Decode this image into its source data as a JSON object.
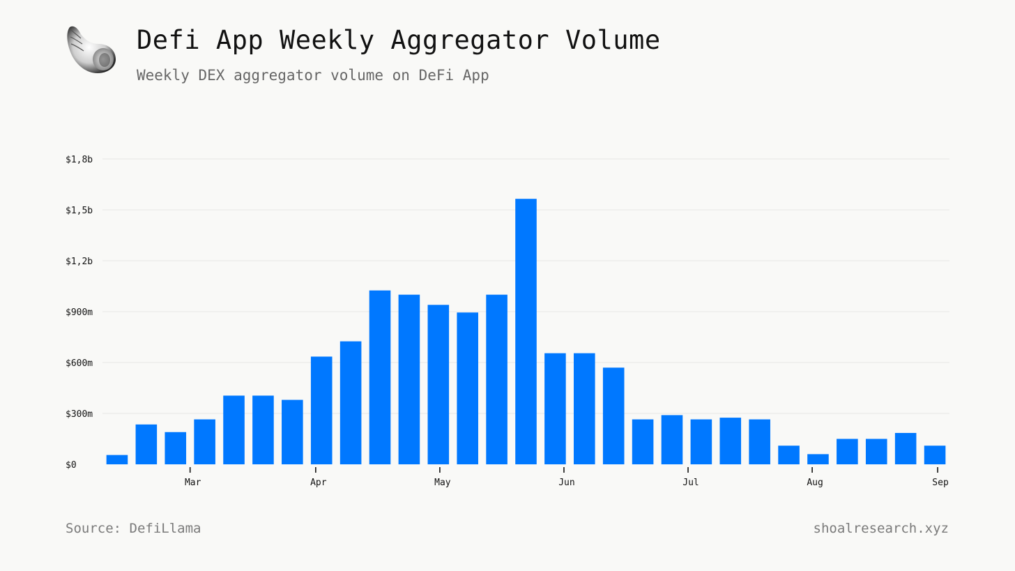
{
  "header": {
    "title": "Defi App Weekly Aggregator Volume",
    "subtitle": "Weekly DEX aggregator volume on DeFi App"
  },
  "footer": {
    "source": "Source: DefiLlama",
    "site": "shoalresearch.xyz"
  },
  "logo": {
    "icon": "seashell-icon"
  },
  "colors": {
    "bar": "#0078ff",
    "grid": "#e6e6e6",
    "text": "#111111",
    "muted": "#7a7a7a",
    "background": "#f9f9f7"
  },
  "chart_data": {
    "type": "bar",
    "title": "Defi App Weekly Aggregator Volume",
    "subtitle": "Weekly DEX aggregator volume on DeFi App",
    "xlabel": "",
    "ylabel": "",
    "unit": "USD",
    "ylim": [
      0,
      1800000000
    ],
    "grid": true,
    "legend": "none",
    "yticks": [
      {
        "value": 0,
        "label": "$0"
      },
      {
        "value": 300000000,
        "label": "$300m"
      },
      {
        "value": 600000000,
        "label": "$600m"
      },
      {
        "value": 900000000,
        "label": "$900m"
      },
      {
        "value": 1200000000,
        "label": "$1,2b"
      },
      {
        "value": 1500000000,
        "label": "$1,5b"
      },
      {
        "value": 1800000000,
        "label": "$1,8b"
      }
    ],
    "xticks": [
      {
        "label": "Mar",
        "at_bar": 3
      },
      {
        "label": "Apr",
        "at_bar": 7.3
      },
      {
        "label": "May",
        "at_bar": 11.55
      },
      {
        "label": "Jun",
        "at_bar": 15.8
      },
      {
        "label": "Jul",
        "at_bar": 20.05
      },
      {
        "label": "Aug",
        "at_bar": 24.3
      },
      {
        "label": "Sep",
        "at_bar": 28.5
      }
    ],
    "values": [
      55000000,
      235000000,
      190000000,
      265000000,
      405000000,
      405000000,
      380000000,
      635000000,
      725000000,
      1025000000,
      1000000000,
      940000000,
      895000000,
      1000000000,
      1565000000,
      655000000,
      655000000,
      570000000,
      265000000,
      290000000,
      265000000,
      275000000,
      265000000,
      110000000,
      60000000,
      150000000,
      150000000,
      185000000,
      110000000
    ]
  }
}
